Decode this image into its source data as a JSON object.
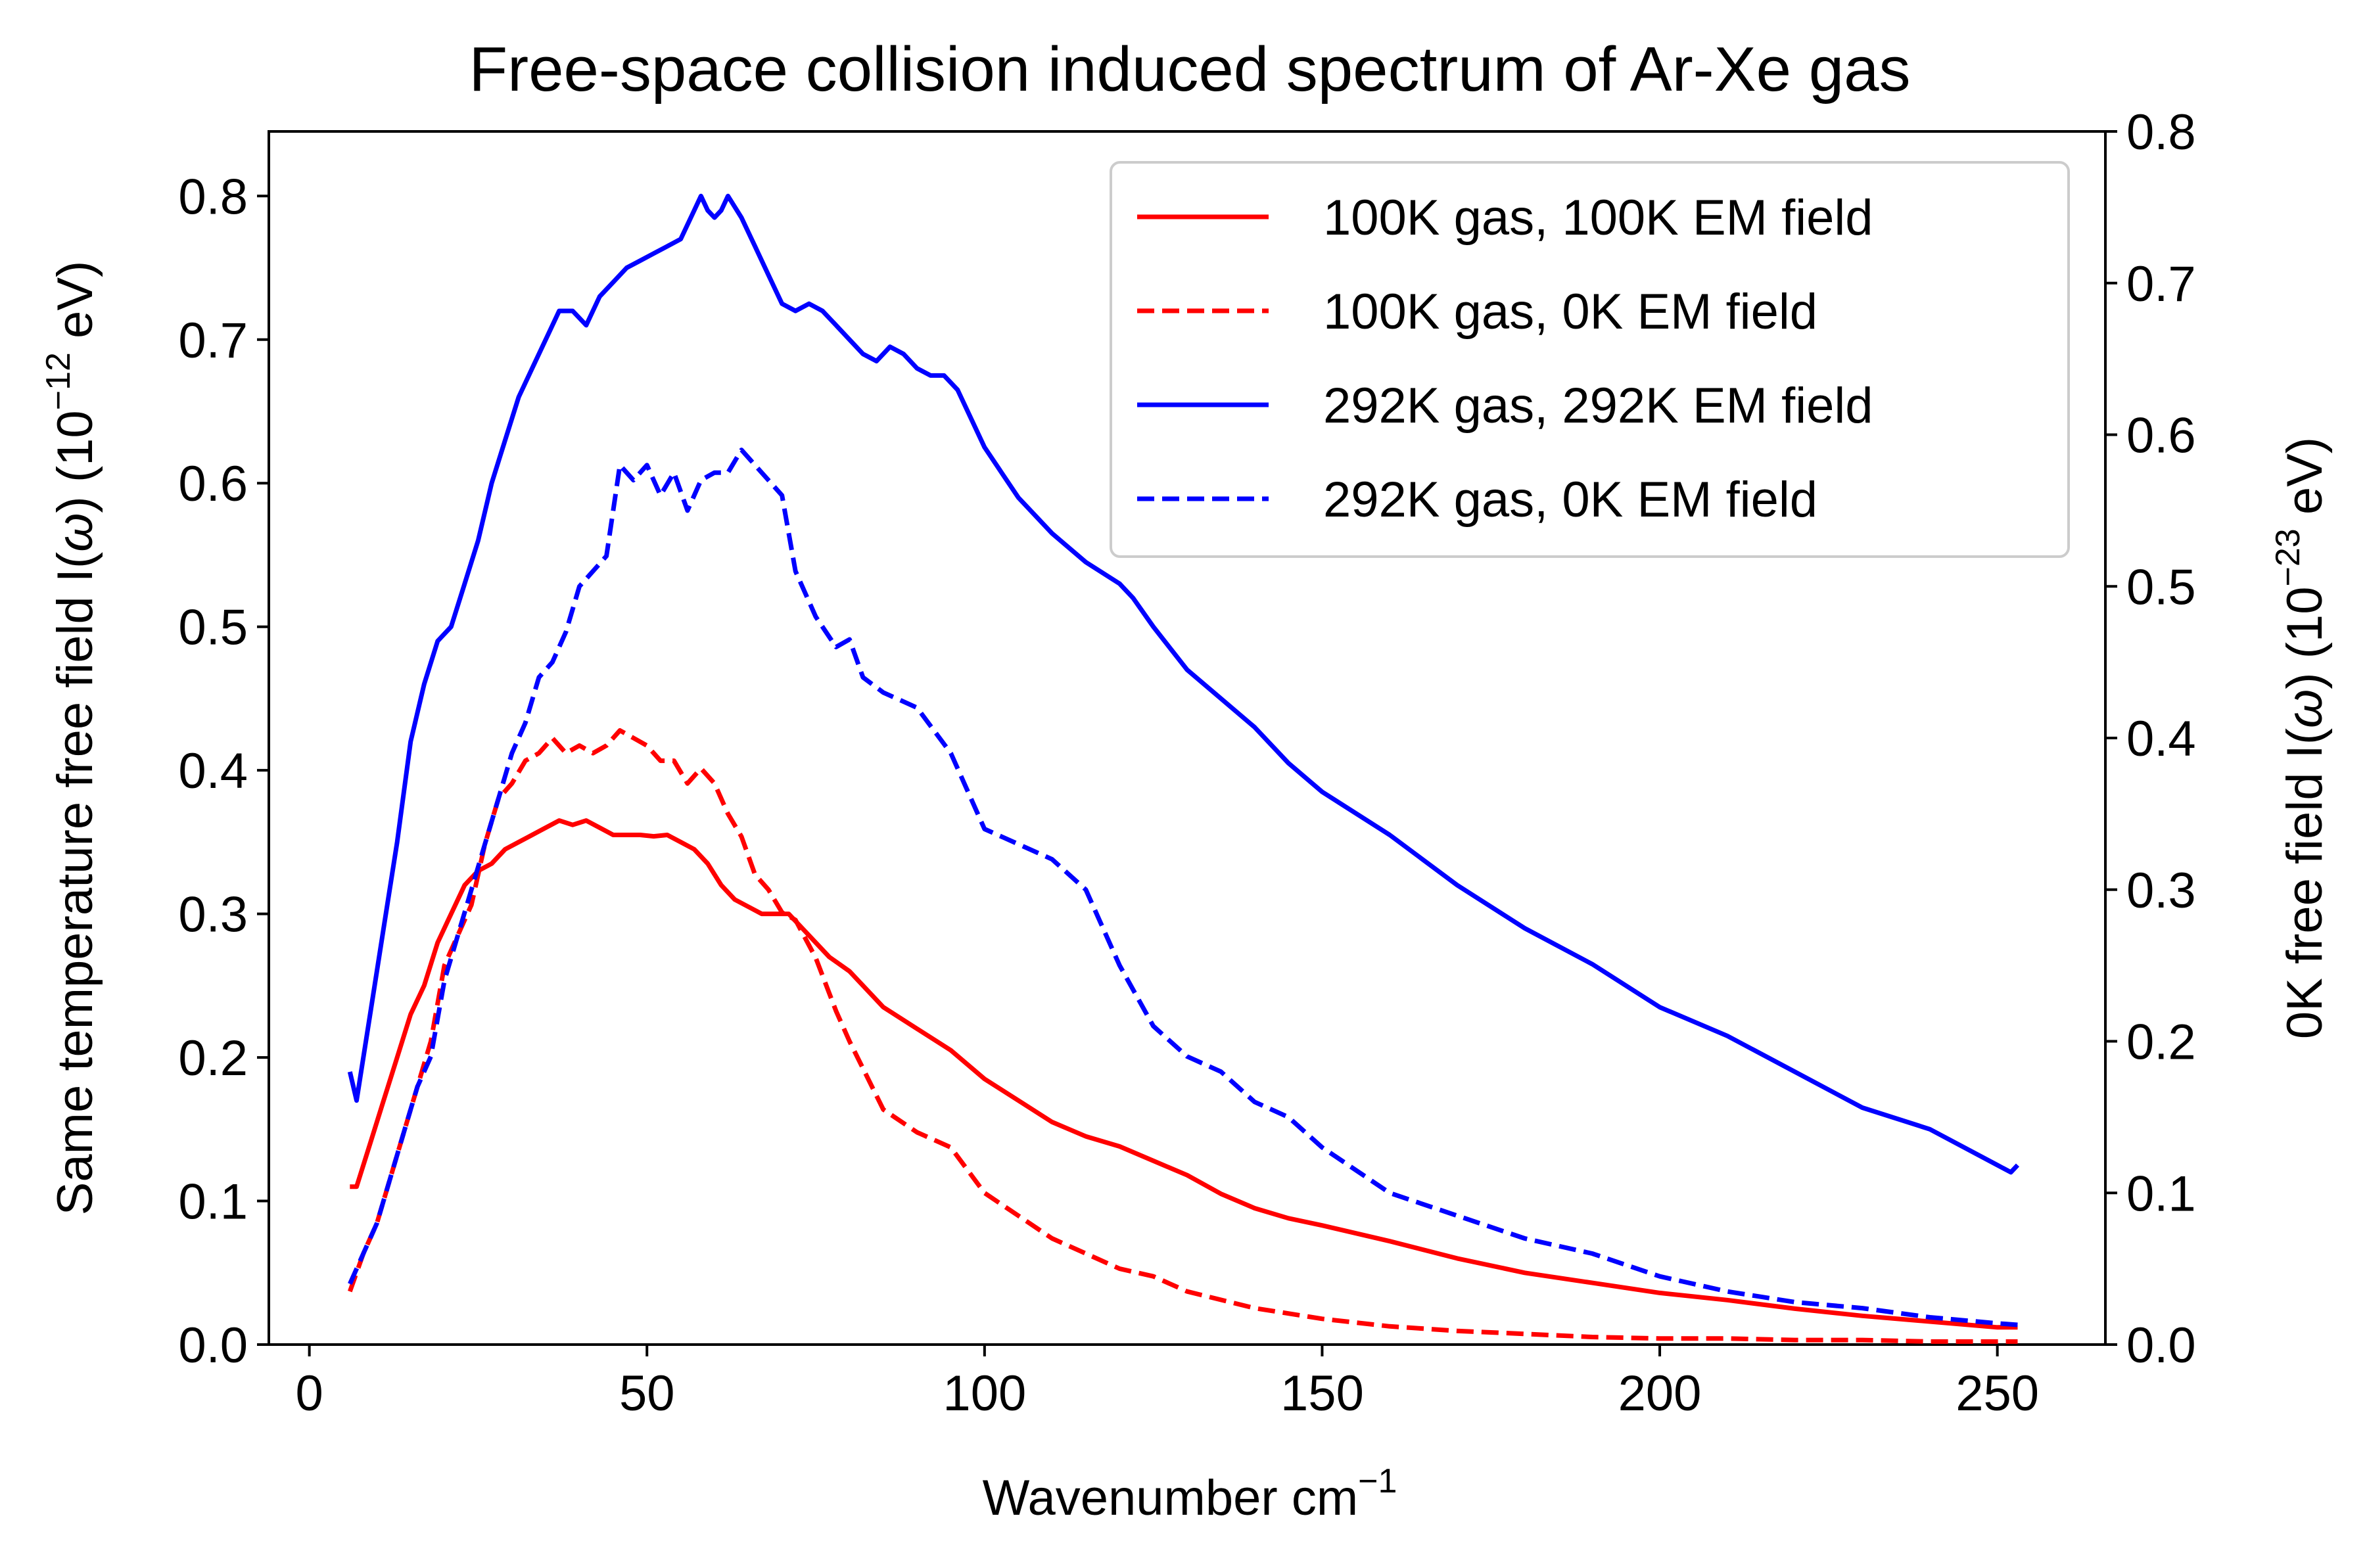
{
  "chart_data": {
    "type": "line",
    "title": "Free-space collision induced spectrum of Ar-Xe gas",
    "xlabel": "Wavenumber cm",
    "xlabel_sup": "−1",
    "ylabel_left": {
      "main": "Same temperature free field I(",
      "omega": "ω",
      "mid": ") (10",
      "sup": "−12",
      "end": " eV)"
    },
    "ylabel_right": {
      "main": "0K free field I(",
      "omega": "ω",
      "mid": ") (10",
      "sup": "−23",
      "end": " eV)"
    },
    "xlim": [
      -6,
      266
    ],
    "ylim_left": [
      0,
      0.845
    ],
    "ylim_right": [
      0,
      0.8
    ],
    "xticks": [
      "0",
      "50",
      "100",
      "150",
      "200",
      "250"
    ],
    "yticks_left": [
      "0.0",
      "0.1",
      "0.2",
      "0.3",
      "0.4",
      "0.5",
      "0.6",
      "0.7",
      "0.8"
    ],
    "yticks_right": [
      "0.0",
      "0.1",
      "0.2",
      "0.3",
      "0.4",
      "0.5",
      "0.6",
      "0.7",
      "0.8"
    ],
    "legend_position": "top-right",
    "series": [
      {
        "name": "100K gas, 100K EM field",
        "axis": "left",
        "color": "#ff0000",
        "dash": "solid",
        "x": [
          6,
          7,
          9,
          11,
          13,
          15,
          17,
          19,
          21,
          23,
          25,
          27,
          29,
          31,
          33,
          35,
          37,
          39,
          41,
          43,
          45,
          47,
          49,
          51,
          53,
          55,
          57,
          59,
          61,
          63,
          65,
          67,
          69,
          71,
          73,
          75,
          77,
          80,
          85,
          90,
          95,
          100,
          105,
          110,
          115,
          120,
          125,
          130,
          135,
          140,
          145,
          150,
          160,
          170,
          180,
          190,
          200,
          210,
          220,
          230,
          240,
          250,
          253
        ],
        "y": [
          0.11,
          0.11,
          0.14,
          0.17,
          0.2,
          0.23,
          0.25,
          0.28,
          0.3,
          0.32,
          0.33,
          0.335,
          0.345,
          0.35,
          0.355,
          0.36,
          0.365,
          0.362,
          0.365,
          0.36,
          0.355,
          0.355,
          0.355,
          0.354,
          0.355,
          0.35,
          0.345,
          0.335,
          0.32,
          0.31,
          0.305,
          0.3,
          0.3,
          0.3,
          0.29,
          0.28,
          0.27,
          0.26,
          0.235,
          0.22,
          0.205,
          0.185,
          0.17,
          0.155,
          0.145,
          0.138,
          0.128,
          0.118,
          0.105,
          0.095,
          0.088,
          0.083,
          0.072,
          0.06,
          0.05,
          0.043,
          0.036,
          0.031,
          0.025,
          0.02,
          0.016,
          0.012,
          0.012
        ]
      },
      {
        "name": "100K gas, 0K EM field",
        "axis": "right",
        "color": "#ff0000",
        "dash": "dashed",
        "x": [
          6,
          8,
          10,
          12,
          14,
          16,
          18,
          20,
          22,
          24,
          26,
          28,
          30,
          32,
          34,
          36,
          38,
          40,
          42,
          44,
          46,
          48,
          50,
          52,
          54,
          56,
          58,
          60,
          62,
          64,
          66,
          68,
          70,
          72,
          75,
          78,
          80,
          85,
          90,
          95,
          100,
          105,
          110,
          115,
          120,
          125,
          130,
          140,
          150,
          160,
          170,
          180,
          190,
          200,
          210,
          220,
          230,
          240,
          250,
          253
        ],
        "y": [
          0.035,
          0.06,
          0.08,
          0.11,
          0.14,
          0.17,
          0.2,
          0.25,
          0.27,
          0.29,
          0.33,
          0.36,
          0.37,
          0.385,
          0.39,
          0.4,
          0.39,
          0.395,
          0.39,
          0.395,
          0.405,
          0.4,
          0.395,
          0.385,
          0.385,
          0.37,
          0.38,
          0.37,
          0.35,
          0.335,
          0.31,
          0.3,
          0.285,
          0.28,
          0.255,
          0.22,
          0.2,
          0.155,
          0.14,
          0.13,
          0.1,
          0.085,
          0.07,
          0.06,
          0.05,
          0.045,
          0.035,
          0.024,
          0.017,
          0.012,
          0.009,
          0.007,
          0.005,
          0.004,
          0.004,
          0.003,
          0.003,
          0.002,
          0.002,
          0.002
        ]
      },
      {
        "name": "292K gas, 292K EM field",
        "axis": "left",
        "color": "#0000ff",
        "dash": "solid",
        "x": [
          6,
          7,
          9,
          11,
          13,
          15,
          17,
          19,
          21,
          23,
          25,
          27,
          29,
          31,
          33,
          35,
          37,
          39,
          41,
          43,
          45,
          47,
          49,
          51,
          53,
          55,
          57,
          58,
          59,
          60,
          61,
          62,
          64,
          66,
          68,
          70,
          72,
          74,
          76,
          78,
          80,
          82,
          84,
          86,
          88,
          90,
          92,
          94,
          96,
          98,
          100,
          105,
          110,
          115,
          120,
          122,
          125,
          130,
          135,
          140,
          145,
          150,
          160,
          170,
          180,
          190,
          200,
          210,
          220,
          230,
          240,
          250,
          252,
          253
        ],
        "y": [
          0.19,
          0.17,
          0.23,
          0.29,
          0.35,
          0.42,
          0.46,
          0.49,
          0.5,
          0.53,
          0.56,
          0.6,
          0.63,
          0.66,
          0.68,
          0.7,
          0.72,
          0.72,
          0.71,
          0.73,
          0.74,
          0.75,
          0.755,
          0.76,
          0.765,
          0.77,
          0.79,
          0.8,
          0.79,
          0.785,
          0.79,
          0.8,
          0.785,
          0.765,
          0.745,
          0.725,
          0.72,
          0.725,
          0.72,
          0.71,
          0.7,
          0.69,
          0.685,
          0.695,
          0.69,
          0.68,
          0.675,
          0.675,
          0.665,
          0.645,
          0.625,
          0.59,
          0.565,
          0.545,
          0.53,
          0.52,
          0.5,
          0.47,
          0.45,
          0.43,
          0.405,
          0.385,
          0.355,
          0.32,
          0.29,
          0.265,
          0.235,
          0.215,
          0.19,
          0.165,
          0.15,
          0.125,
          0.12,
          0.125
        ]
      },
      {
        "name": "292K gas, 0K EM field",
        "axis": "right",
        "color": "#0000ff",
        "dash": "dashed",
        "x": [
          6,
          8,
          10,
          12,
          14,
          16,
          18,
          20,
          22,
          24,
          26,
          28,
          30,
          32,
          34,
          36,
          38,
          40,
          42,
          44,
          46,
          48,
          50,
          52,
          54,
          56,
          58,
          60,
          62,
          64,
          66,
          68,
          70,
          72,
          75,
          78,
          80,
          82,
          85,
          90,
          95,
          100,
          105,
          110,
          115,
          120,
          125,
          130,
          135,
          140,
          145,
          150,
          160,
          170,
          180,
          190,
          200,
          210,
          220,
          230,
          240,
          250,
          253
        ],
        "y": [
          0.04,
          0.06,
          0.08,
          0.11,
          0.14,
          0.17,
          0.19,
          0.24,
          0.27,
          0.3,
          0.33,
          0.36,
          0.39,
          0.41,
          0.44,
          0.45,
          0.47,
          0.5,
          0.51,
          0.52,
          0.58,
          0.57,
          0.58,
          0.56,
          0.575,
          0.55,
          0.57,
          0.575,
          0.575,
          0.59,
          0.58,
          0.57,
          0.56,
          0.51,
          0.48,
          0.46,
          0.465,
          0.44,
          0.43,
          0.42,
          0.39,
          0.34,
          0.33,
          0.32,
          0.3,
          0.25,
          0.21,
          0.19,
          0.18,
          0.16,
          0.15,
          0.13,
          0.1,
          0.085,
          0.07,
          0.06,
          0.045,
          0.035,
          0.028,
          0.024,
          0.018,
          0.014,
          0.013
        ]
      }
    ]
  }
}
